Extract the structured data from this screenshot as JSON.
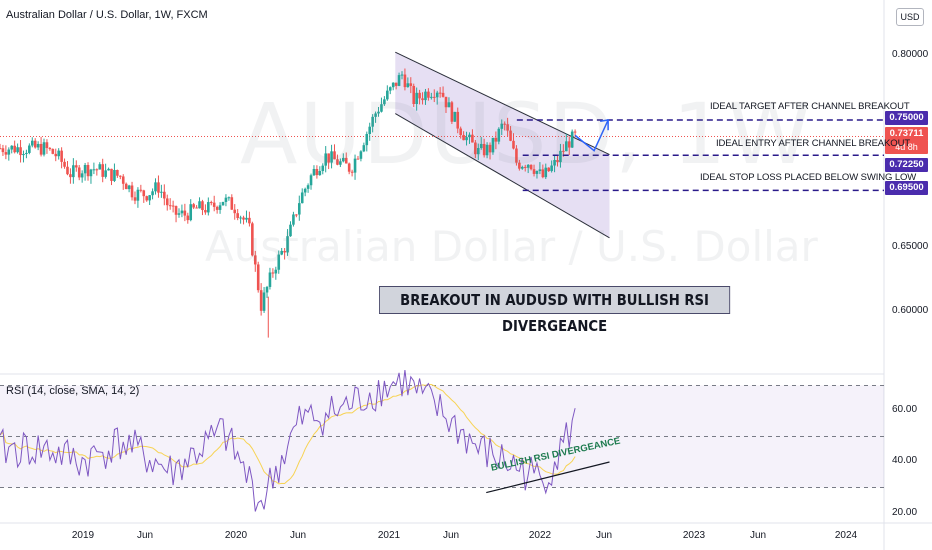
{
  "header": {
    "title": "Australian Dollar / U.S. Dollar, 1W, FXCM",
    "currency_button": "USD"
  },
  "watermark": {
    "symbol": "AUDUSD, 1W",
    "name": "Australian Dollar / U.S. Dollar"
  },
  "price_axis": {
    "ticks": [
      "0.80000",
      "0.65000",
      "0.60000"
    ],
    "tags": {
      "target": "0.75000",
      "current": "0.73711",
      "countdown": "4d 8h",
      "entry": "0.72250",
      "stop": "0.69500"
    }
  },
  "rsi_axis": {
    "ticks": [
      "60.00",
      "40.00",
      "20.00"
    ]
  },
  "time_axis": {
    "ticks": [
      "2019",
      "Jun",
      "2020",
      "Jun",
      "2021",
      "Jun",
      "2022",
      "Jun",
      "2023",
      "Jun",
      "2024"
    ]
  },
  "annotations": {
    "target": "IDEAL TARGET AFTER CHANNEL BREAKOUT",
    "entry": "IDEAL ENTRY AFTER CHANNEL BREAKOUT",
    "stop": "IDEAL STOP LOSS PLACED BELOW SWING LOW",
    "headline": "BREAKOUT IN AUDUSD WITH BULLISH RSI DIVERGEANCE",
    "rsi_divergence": "BULLISH RSI DIVERGEANCE"
  },
  "indicator": {
    "title": "RSI (14, close, SMA, 14, 2)"
  },
  "colors": {
    "up": "#26a69a",
    "down": "#ef5350",
    "channel_fill": "#d1c4e9",
    "level_line": "#2a1a8a",
    "rsi_line": "#7e57c2",
    "rsi_ma": "#f7d354",
    "arrow": "#2962ff"
  },
  "chart_data": {
    "type": "candlestick",
    "title": "Australian Dollar / U.S. Dollar, 1W, FXCM",
    "price_range": [
      0.585,
      0.815
    ],
    "key_levels": {
      "target": 0.75,
      "entry": 0.7225,
      "stop": 0.695,
      "current": 0.73711
    },
    "weekly_closes": [
      {
        "date": "2018-10-01",
        "close": 0.728
      },
      {
        "date": "2018-11-01",
        "close": 0.722
      },
      {
        "date": "2018-12-01",
        "close": 0.708
      },
      {
        "date": "2019-01-01",
        "close": 0.712
      },
      {
        "date": "2019-02-01",
        "close": 0.712
      },
      {
        "date": "2019-03-01",
        "close": 0.708
      },
      {
        "date": "2019-04-01",
        "close": 0.706
      },
      {
        "date": "2019-05-01",
        "close": 0.693
      },
      {
        "date": "2019-06-01",
        "close": 0.692
      },
      {
        "date": "2019-07-01",
        "close": 0.698
      },
      {
        "date": "2019-08-01",
        "close": 0.677
      },
      {
        "date": "2019-09-01",
        "close": 0.676
      },
      {
        "date": "2019-10-01",
        "close": 0.681
      },
      {
        "date": "2019-11-01",
        "close": 0.681
      },
      {
        "date": "2019-12-01",
        "close": 0.688
      },
      {
        "date": "2020-01-01",
        "close": 0.681
      },
      {
        "date": "2020-02-01",
        "close": 0.666
      },
      {
        "date": "2020-03-01",
        "close": 0.605
      },
      {
        "date": "2020-04-01",
        "close": 0.635
      },
      {
        "date": "2020-05-01",
        "close": 0.654
      },
      {
        "date": "2020-06-01",
        "close": 0.688
      },
      {
        "date": "2020-07-01",
        "close": 0.708
      },
      {
        "date": "2020-08-01",
        "close": 0.722
      },
      {
        "date": "2020-09-01",
        "close": 0.717
      },
      {
        "date": "2020-10-01",
        "close": 0.712
      },
      {
        "date": "2020-11-01",
        "close": 0.735
      },
      {
        "date": "2020-12-01",
        "close": 0.757
      },
      {
        "date": "2021-01-01",
        "close": 0.772
      },
      {
        "date": "2021-02-01",
        "close": 0.786
      },
      {
        "date": "2021-03-01",
        "close": 0.765
      },
      {
        "date": "2021-04-01",
        "close": 0.772
      },
      {
        "date": "2021-05-01",
        "close": 0.775
      },
      {
        "date": "2021-06-01",
        "close": 0.753
      },
      {
        "date": "2021-07-01",
        "close": 0.737
      },
      {
        "date": "2021-08-01",
        "close": 0.725
      },
      {
        "date": "2021-09-01",
        "close": 0.728
      },
      {
        "date": "2021-10-01",
        "close": 0.748
      },
      {
        "date": "2021-11-01",
        "close": 0.716
      },
      {
        "date": "2021-12-01",
        "close": 0.717
      },
      {
        "date": "2022-01-01",
        "close": 0.705
      },
      {
        "date": "2022-02-01",
        "close": 0.716
      },
      {
        "date": "2022-03-01",
        "close": 0.732
      },
      {
        "date": "2022-03-20",
        "close": 0.737
      }
    ],
    "rsi": {
      "params": "RSI (14, close, SMA, 14, 2)",
      "range": [
        15,
        75
      ],
      "bands": [
        70,
        50,
        30
      ],
      "values": [
        {
          "date": "2018-10-01",
          "value": 45
        },
        {
          "date": "2019-01-01",
          "value": 40
        },
        {
          "date": "2019-04-01",
          "value": 48
        },
        {
          "date": "2019-08-01",
          "value": 36
        },
        {
          "date": "2019-12-01",
          "value": 52
        },
        {
          "date": "2020-03-01",
          "value": 24
        },
        {
          "date": "2020-06-01",
          "value": 56
        },
        {
          "date": "2020-09-01",
          "value": 60
        },
        {
          "date": "2020-12-01",
          "value": 68
        },
        {
          "date": "2021-02-01",
          "value": 72
        },
        {
          "date": "2021-05-01",
          "value": 60
        },
        {
          "date": "2021-08-01",
          "value": 45
        },
        {
          "date": "2021-11-01",
          "value": 38
        },
        {
          "date": "2022-01-01",
          "value": 33
        },
        {
          "date": "2022-02-01",
          "value": 41
        },
        {
          "date": "2022-03-20",
          "value": 56
        }
      ]
    }
  }
}
